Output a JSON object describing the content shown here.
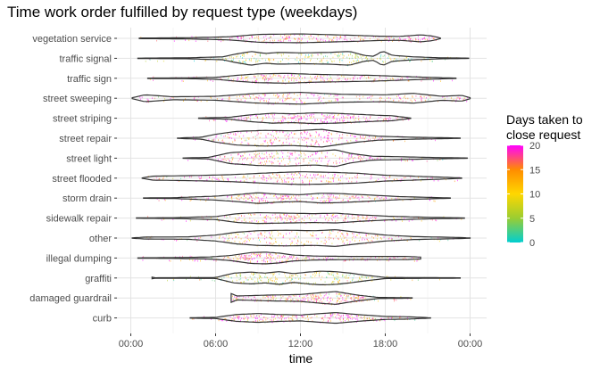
{
  "chart_data": {
    "type": "violin",
    "title": "Time work order fulfilled by request type (weekdays)",
    "xlabel": "time",
    "ylabel": "",
    "x_range_hours": [
      0,
      24
    ],
    "x_ticks": [
      {
        "hour": 0,
        "label": "00:00"
      },
      {
        "hour": 6,
        "label": "06:00"
      },
      {
        "hour": 12,
        "label": "12:00"
      },
      {
        "hour": 18,
        "label": "18:00"
      },
      {
        "hour": 24,
        "label": "00:00"
      }
    ],
    "grid": true,
    "legend": {
      "title_lines": [
        "Days taken to",
        "close request"
      ],
      "placement": "right",
      "min": 0,
      "max": 20,
      "ticks": [
        0,
        5,
        10,
        15,
        20
      ],
      "colors": [
        "#00CED1",
        "#9ACD32",
        "#FFD700",
        "#FF8C00",
        "#FF00FF"
      ]
    },
    "categories": [
      {
        "name": "vegetation service",
        "min": 0.6,
        "max": 21.9,
        "median_days": 18,
        "density": [
          [
            0.6,
            0.03
          ],
          [
            4,
            0.06
          ],
          [
            7,
            0.16
          ],
          [
            9,
            0.4
          ],
          [
            12,
            0.45
          ],
          [
            14,
            0.38
          ],
          [
            16,
            0.3
          ],
          [
            17.5,
            0.22
          ],
          [
            19,
            0.2
          ],
          [
            20.5,
            0.35
          ],
          [
            21.3,
            0.25
          ],
          [
            21.9,
            0.03
          ]
        ]
      },
      {
        "name": "traffic signal",
        "min": 0.5,
        "max": 23.9,
        "median_days": 6,
        "density": [
          [
            0.5,
            0.02
          ],
          [
            4,
            0.05
          ],
          [
            6.5,
            0.15
          ],
          [
            7.5,
            0.45
          ],
          [
            8.5,
            0.7
          ],
          [
            9.5,
            0.5
          ],
          [
            10.5,
            0.6
          ],
          [
            12,
            0.55
          ],
          [
            14,
            0.6
          ],
          [
            15.5,
            0.7
          ],
          [
            16.5,
            0.3
          ],
          [
            17.2,
            0.2
          ],
          [
            17.8,
            0.75
          ],
          [
            18.5,
            0.3
          ],
          [
            20,
            0.15
          ],
          [
            22,
            0.05
          ],
          [
            23.9,
            0.02
          ]
        ]
      },
      {
        "name": "traffic sign",
        "min": 1.2,
        "max": 23.0,
        "median_days": 17,
        "density": [
          [
            1.2,
            0.02
          ],
          [
            4,
            0.04
          ],
          [
            6,
            0.1
          ],
          [
            7.5,
            0.3
          ],
          [
            9,
            0.45
          ],
          [
            11,
            0.5
          ],
          [
            13,
            0.4
          ],
          [
            15,
            0.35
          ],
          [
            17,
            0.3
          ],
          [
            19,
            0.2
          ],
          [
            21,
            0.1
          ],
          [
            23,
            0.02
          ]
        ]
      },
      {
        "name": "street sweeping",
        "min": 0.1,
        "max": 24.0,
        "median_days": 18,
        "density": [
          [
            0.1,
            0.05
          ],
          [
            1,
            0.35
          ],
          [
            3,
            0.15
          ],
          [
            6,
            0.2
          ],
          [
            9,
            0.5
          ],
          [
            12,
            0.6
          ],
          [
            15,
            0.4
          ],
          [
            18,
            0.35
          ],
          [
            20,
            0.5
          ],
          [
            22,
            0.2
          ],
          [
            23.4,
            0.3
          ],
          [
            24,
            0.05
          ]
        ]
      },
      {
        "name": "street striping",
        "min": 4.8,
        "max": 19.8,
        "median_days": 19,
        "density": [
          [
            4.8,
            0.02
          ],
          [
            7,
            0.1
          ],
          [
            8.5,
            0.35
          ],
          [
            10,
            0.5
          ],
          [
            11.5,
            0.45
          ],
          [
            13,
            0.55
          ],
          [
            14.5,
            0.5
          ],
          [
            16,
            0.4
          ],
          [
            17.5,
            0.3
          ],
          [
            18.5,
            0.25
          ],
          [
            19.8,
            0.02
          ]
        ]
      },
      {
        "name": "street repair",
        "min": 3.3,
        "max": 23.3,
        "median_days": 19,
        "density": [
          [
            3.3,
            0.02
          ],
          [
            5,
            0.1
          ],
          [
            6,
            0.4
          ],
          [
            7.5,
            0.7
          ],
          [
            9.5,
            0.8
          ],
          [
            11.5,
            0.75
          ],
          [
            13.5,
            0.9
          ],
          [
            14.5,
            0.7
          ],
          [
            16,
            0.4
          ],
          [
            17.5,
            0.2
          ],
          [
            20,
            0.1
          ],
          [
            23.3,
            0.02
          ]
        ]
      },
      {
        "name": "street light",
        "min": 3.7,
        "max": 23.8,
        "median_days": 19,
        "density": [
          [
            3.7,
            0.02
          ],
          [
            5.5,
            0.08
          ],
          [
            7,
            0.55
          ],
          [
            9,
            0.75
          ],
          [
            11,
            0.8
          ],
          [
            13,
            0.7
          ],
          [
            14.5,
            0.85
          ],
          [
            15.5,
            0.5
          ],
          [
            17,
            0.2
          ],
          [
            19,
            0.15
          ],
          [
            21,
            0.08
          ],
          [
            23.8,
            0.02
          ]
        ]
      },
      {
        "name": "street flooded",
        "min": 0.8,
        "max": 23.4,
        "median_days": 18,
        "density": [
          [
            0.8,
            0.02
          ],
          [
            1.5,
            0.2
          ],
          [
            4,
            0.25
          ],
          [
            7,
            0.35
          ],
          [
            10,
            0.55
          ],
          [
            12,
            0.65
          ],
          [
            14,
            0.6
          ],
          [
            16,
            0.5
          ],
          [
            18,
            0.3
          ],
          [
            20,
            0.2
          ],
          [
            22,
            0.1
          ],
          [
            23.4,
            0.02
          ]
        ]
      },
      {
        "name": "storm drain",
        "min": 0.9,
        "max": 22.6,
        "median_days": 18,
        "density": [
          [
            0.9,
            0.02
          ],
          [
            3,
            0.04
          ],
          [
            6,
            0.2
          ],
          [
            7.5,
            0.35
          ],
          [
            9,
            0.55
          ],
          [
            10.5,
            0.4
          ],
          [
            12,
            0.35
          ],
          [
            13.5,
            0.5
          ],
          [
            15,
            0.45
          ],
          [
            17,
            0.3
          ],
          [
            19,
            0.15
          ],
          [
            22.6,
            0.02
          ]
        ]
      },
      {
        "name": "sidewalk repair",
        "min": 0.4,
        "max": 23.6,
        "median_days": 17,
        "density": [
          [
            0.4,
            0.02
          ],
          [
            3,
            0.04
          ],
          [
            6,
            0.15
          ],
          [
            7.5,
            0.45
          ],
          [
            9,
            0.55
          ],
          [
            11,
            0.5
          ],
          [
            13,
            0.45
          ],
          [
            14.5,
            0.5
          ],
          [
            16,
            0.35
          ],
          [
            18,
            0.2
          ],
          [
            21,
            0.08
          ],
          [
            23.6,
            0.02
          ]
        ]
      },
      {
        "name": "other",
        "min": 0.1,
        "max": 24.0,
        "median_days": 15,
        "density": [
          [
            0.1,
            0.02
          ],
          [
            1,
            0.1
          ],
          [
            4,
            0.12
          ],
          [
            6,
            0.3
          ],
          [
            7.5,
            0.6
          ],
          [
            9,
            0.75
          ],
          [
            11,
            0.8
          ],
          [
            13,
            0.75
          ],
          [
            14.5,
            0.85
          ],
          [
            16,
            0.6
          ],
          [
            17,
            0.45
          ],
          [
            18,
            0.3
          ],
          [
            20,
            0.15
          ],
          [
            22.5,
            0.08
          ],
          [
            24,
            0.02
          ]
        ]
      },
      {
        "name": "illegal dumping",
        "min": 0.5,
        "max": 20.5,
        "median_days": 18,
        "density": [
          [
            0.5,
            0.02
          ],
          [
            3,
            0.04
          ],
          [
            5.5,
            0.1
          ],
          [
            7,
            0.25
          ],
          [
            8.5,
            0.55
          ],
          [
            9.5,
            0.6
          ],
          [
            10.5,
            0.5
          ],
          [
            11.5,
            0.3
          ],
          [
            13,
            0.2
          ],
          [
            16,
            0.16
          ],
          [
            19.5,
            0.16
          ],
          [
            20.5,
            0.1
          ]
        ]
      },
      {
        "name": "graffiti",
        "min": 1.5,
        "max": 23.3,
        "median_days": 7,
        "density": [
          [
            1.5,
            0.08
          ],
          [
            1.6,
            0.02
          ],
          [
            3,
            0.03
          ],
          [
            6,
            0.05
          ],
          [
            7.3,
            0.5
          ],
          [
            8.5,
            0.6
          ],
          [
            9.5,
            0.5
          ],
          [
            10.5,
            0.65
          ],
          [
            11.5,
            0.45
          ],
          [
            12.5,
            0.6
          ],
          [
            13.5,
            0.7
          ],
          [
            14.5,
            0.65
          ],
          [
            15.5,
            0.5
          ],
          [
            16.5,
            0.3
          ],
          [
            18,
            0.06
          ],
          [
            23.3,
            0.02
          ]
        ]
      },
      {
        "name": "damaged guardrail",
        "min": 7.1,
        "max": 19.9,
        "median_days": 17,
        "density": [
          [
            7.1,
            0.45
          ],
          [
            7.5,
            0.2
          ],
          [
            10,
            0.3
          ],
          [
            12,
            0.35
          ],
          [
            13.5,
            0.55
          ],
          [
            14.5,
            0.65
          ],
          [
            16,
            0.3
          ],
          [
            17.5,
            0.06
          ],
          [
            19.9,
            0.02
          ]
        ]
      },
      {
        "name": "curb",
        "min": 4.2,
        "max": 21.2,
        "median_days": 18,
        "density": [
          [
            4.2,
            0.02
          ],
          [
            6,
            0.06
          ],
          [
            7.5,
            0.35
          ],
          [
            9,
            0.45
          ],
          [
            10.5,
            0.35
          ],
          [
            12,
            0.3
          ],
          [
            13.5,
            0.45
          ],
          [
            14.5,
            0.55
          ],
          [
            16,
            0.35
          ],
          [
            18,
            0.15
          ],
          [
            19.5,
            0.12
          ],
          [
            21.2,
            0.02
          ]
        ]
      }
    ]
  }
}
